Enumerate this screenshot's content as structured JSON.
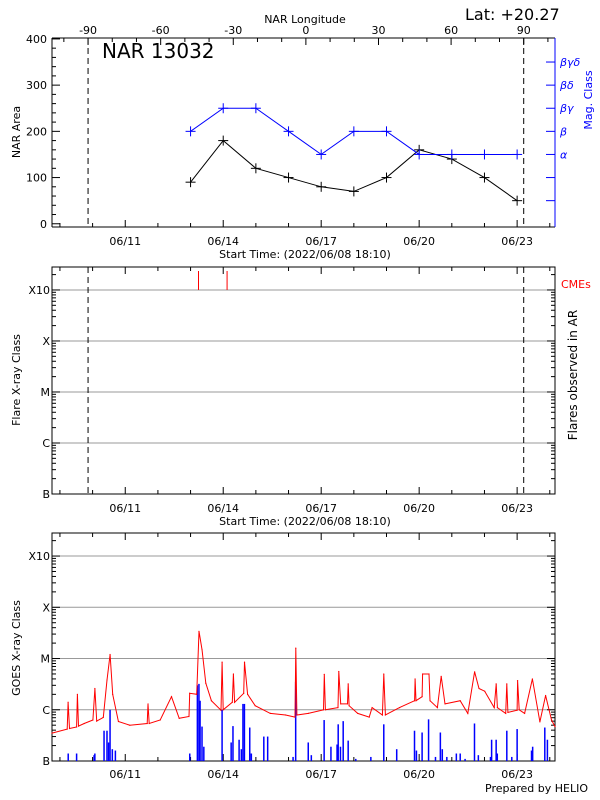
{
  "chart_data": [
    {
      "type": "line",
      "title": "NAR 13032",
      "lat_label": "Lat: +20.27",
      "top_axis_label": "NAR Longitude",
      "top_ticks": [
        -90,
        -60,
        -30,
        0,
        30,
        60,
        90
      ],
      "limb_dates": [
        "2022-06-09T20:40",
        "2022-06-23T04:50"
      ],
      "xlabel": "Start Time: (2022/06/08 18:10)",
      "xlim": [
        "2022-06-08T18:10",
        "2022-06-24T03:50"
      ],
      "xticks": [
        "06/11",
        "06/14",
        "06/17",
        "06/20",
        "06/23"
      ],
      "ylabel": "NAR Area",
      "ylim": [
        -7,
        402
      ],
      "yticks": [
        0,
        100,
        200,
        300,
        400
      ],
      "y2label": "Mag. Class",
      "y2_classes": [
        "α",
        "β",
        "βγ",
        "βδ",
        "βγδ"
      ],
      "colors": {
        "area": "#000000",
        "mag_class": "#0000ff"
      },
      "series": [
        {
          "key": "area",
          "times": [
            "2022-06-13T00:00",
            "2022-06-14T00:00",
            "2022-06-15T00:00",
            "2022-06-16T00:00",
            "2022-06-17T00:00",
            "2022-06-18T00:00",
            "2022-06-19T00:00",
            "2022-06-20T00:00",
            "2022-06-21T00:00",
            "2022-06-22T00:00",
            "2022-06-23T00:00"
          ],
          "values": [
            90,
            180,
            120,
            100,
            80,
            70,
            100,
            160,
            140,
            100,
            50
          ]
        },
        {
          "key": "mag_class",
          "times": [
            "2022-06-13T00:00",
            "2022-06-14T00:00",
            "2022-06-15T00:00",
            "2022-06-16T00:00",
            "2022-06-17T00:00",
            "2022-06-18T00:00",
            "2022-06-19T00:00",
            "2022-06-20T00:00",
            "2022-06-21T00:00",
            "2022-06-22T00:00",
            "2022-06-23T00:00"
          ],
          "values": [
            "β",
            "βγ",
            "βγ",
            "β",
            "α",
            "β",
            "β",
            "α",
            "α",
            "α",
            "α"
          ]
        }
      ]
    },
    {
      "type": "scatter",
      "xlabel": "Start Time: (2022/06/08 18:10)",
      "xticks": [
        "06/11",
        "06/14",
        "06/17",
        "06/20",
        "06/23"
      ],
      "ylabel": "Flare X-ray Class",
      "y2label": "Flares observed in AR",
      "yscale": "log",
      "yticks": [
        "B",
        "C",
        "M",
        "X",
        "X10"
      ],
      "grid": true,
      "cme_label": "CMEs",
      "cme_times": [
        "2022-06-13T05:50",
        "2022-06-14T02:50"
      ],
      "flares": [],
      "colors": {
        "cme": "#ff0000"
      }
    },
    {
      "type": "line",
      "xticks": [
        "06/11",
        "06/14",
        "06/17",
        "06/20",
        "06/23"
      ],
      "ylabel": "GOES X-ray Class",
      "yscale": "log",
      "yticks": [
        "B",
        "C",
        "M",
        "X",
        "X10"
      ],
      "grid": true,
      "credit": "Prepared by HELIO",
      "colors": {
        "long_channel": "#ff0000",
        "short_channel": "#0000ff"
      },
      "long_channel": [
        [
          "2022-06-08T18:10",
          "B3.5"
        ],
        [
          "2022-06-09T05:20",
          "B4.2"
        ],
        [
          "2022-06-09T06:00",
          "C1.4"
        ],
        [
          "2022-06-09T07:00",
          "B4.3"
        ],
        [
          "2022-06-09T12:15",
          "B4.6"
        ],
        [
          "2022-06-09T12:50",
          "C2.0"
        ],
        [
          "2022-06-09T13:40",
          "B4.8"
        ],
        [
          "2022-06-09T17:50",
          "B5.4"
        ],
        [
          "2022-06-10T00:15",
          "B6.3"
        ],
        [
          "2022-06-10T01:40",
          "C2.6"
        ],
        [
          "2022-06-10T03:00",
          "B6.0"
        ],
        [
          "2022-06-10T07:50",
          "B7.1"
        ],
        [
          "2022-06-10T10:35",
          "C3.8"
        ],
        [
          "2022-06-10T12:50",
          "M1.2"
        ],
        [
          "2022-06-10T14:45",
          "C2.0"
        ],
        [
          "2022-06-10T19:00",
          "B5.9"
        ],
        [
          "2022-06-11T03:20",
          "B5.0"
        ],
        [
          "2022-06-11T16:10",
          "B5.4"
        ],
        [
          "2022-06-11T16:45",
          "C1.3"
        ],
        [
          "2022-06-11T17:35",
          "B5.4"
        ],
        [
          "2022-06-12T01:40",
          "B6.3"
        ],
        [
          "2022-06-12T10:00",
          "C1.8"
        ],
        [
          "2022-06-12T15:40",
          "B6.8"
        ],
        [
          "2022-06-12T22:50",
          "B7.4"
        ],
        [
          "2022-06-12T23:20",
          "C2.1"
        ],
        [
          "2022-06-13T04:30",
          "C2.0"
        ],
        [
          "2022-06-13T06:10",
          "M3.4"
        ],
        [
          "2022-06-13T08:25",
          "M1.5"
        ],
        [
          "2022-06-13T11:10",
          "C3.3"
        ],
        [
          "2022-06-13T15:20",
          "C1.5"
        ],
        [
          "2022-06-13T22:20",
          "B9.8"
        ],
        [
          "2022-06-13T23:10",
          "C8.5"
        ],
        [
          "2022-06-14T00:00",
          "C1.0"
        ],
        [
          "2022-06-14T06:40",
          "C1.4"
        ],
        [
          "2022-06-14T07:30",
          "C5.0"
        ],
        [
          "2022-06-14T08:20",
          "C1.4"
        ],
        [
          "2022-06-14T15:05",
          "C2.1"
        ],
        [
          "2022-06-14T15:40",
          "C8.5"
        ],
        [
          "2022-06-14T17:55",
          "C2.0"
        ],
        [
          "2022-06-14T23:30",
          "C1.2"
        ],
        [
          "2022-06-15T10:35",
          "B8.5"
        ],
        [
          "2022-06-15T21:50",
          "B7.9"
        ],
        [
          "2022-06-16T04:45",
          "B7.2"
        ],
        [
          "2022-06-16T05:20",
          "M1.6"
        ],
        [
          "2022-06-16T06:10",
          "B7.9"
        ],
        [
          "2022-06-16T14:30",
          "B8.5"
        ],
        [
          "2022-06-17T01:40",
          "C1.0"
        ],
        [
          "2022-06-17T02:15",
          "C4.9"
        ],
        [
          "2022-06-17T03:05",
          "C1.0"
        ],
        [
          "2022-06-17T12:20",
          "C1.1"
        ],
        [
          "2022-06-17T12:55",
          "C5.6"
        ],
        [
          "2022-06-17T14:20",
          "C1.3"
        ],
        [
          "2022-06-17T19:20",
          "C1.3"
        ],
        [
          "2022-06-17T19:50",
          "C3.2"
        ],
        [
          "2022-06-17T20:30",
          "C1.2"
        ],
        [
          "2022-06-18T02:50",
          "B8.5"
        ],
        [
          "2022-06-18T11:15",
          "B7.2"
        ],
        [
          "2022-06-18T13:25",
          "C1.1"
        ],
        [
          "2022-06-18T21:00",
          "B7.9"
        ],
        [
          "2022-06-18T22:00",
          "C5.0"
        ],
        [
          "2022-06-18T23:10",
          "B7.9"
        ],
        [
          "2022-06-19T09:35",
          "C1.1"
        ],
        [
          "2022-06-19T20:40",
          "C1.5"
        ],
        [
          "2022-06-19T21:00",
          "C4.0"
        ],
        [
          "2022-06-19T21:40",
          "C1.5"
        ],
        [
          "2022-06-20T02:10",
          "C1.8"
        ],
        [
          "2022-06-20T02:30",
          "C5.0"
        ],
        [
          "2022-06-20T07:15",
          "C5.0"
        ],
        [
          "2022-06-20T08:00",
          "C1.5"
        ],
        [
          "2022-06-20T13:25",
          "C1.1"
        ],
        [
          "2022-06-20T16:10",
          "C4.5"
        ],
        [
          "2022-06-20T19:00",
          "C1.3"
        ],
        [
          "2022-06-21T06:10",
          "C1.5"
        ],
        [
          "2022-06-21T11:45",
          "B8.5"
        ],
        [
          "2022-06-21T16:45",
          "C5.5"
        ],
        [
          "2022-06-21T20:00",
          "C2.6"
        ],
        [
          "2022-06-22T00:10",
          "C2.3"
        ],
        [
          "2022-06-22T07:10",
          "C1.1"
        ],
        [
          "2022-06-22T08:35",
          "C3.2"
        ],
        [
          "2022-06-22T09:30",
          "C1.1"
        ],
        [
          "2022-06-22T15:35",
          "B8.5"
        ],
        [
          "2022-06-22T16:25",
          "C3.2"
        ],
        [
          "2022-06-22T17:15",
          "B8.9"
        ],
        [
          "2022-06-23T00:00",
          "B9.8"
        ],
        [
          "2022-06-23T00:20",
          "C3.7"
        ],
        [
          "2022-06-23T01:30",
          "C1.0"
        ],
        [
          "2022-06-23T05:30",
          "B8.5"
        ],
        [
          "2022-06-23T11:15",
          "C4.0"
        ],
        [
          "2022-06-23T16:45",
          "B5.8"
        ],
        [
          "2022-06-23T20:55",
          "C1.9"
        ],
        [
          "2022-06-24T01:15",
          "B6.3"
        ],
        [
          "2022-06-24T03:50",
          "B4.7"
        ]
      ],
      "short_channel": [
        [
          "2022-06-09T06:05",
          "B1.4"
        ],
        [
          "2022-06-09T12:15",
          "B1.4"
        ],
        [
          "2022-06-10T01:05",
          "B1.3"
        ],
        [
          "2022-06-10T01:40",
          "B1.4"
        ],
        [
          "2022-06-10T08:25",
          "B3.9"
        ],
        [
          "2022-06-10T10:35",
          "B3.9"
        ],
        [
          "2022-06-10T11:45",
          "B2.3"
        ],
        [
          "2022-06-10T12:50",
          "C1.0"
        ],
        [
          "2022-06-10T14:30",
          "B1.7"
        ],
        [
          "2022-06-10T16:45",
          "B1.6"
        ],
        [
          "2022-06-12T23:25",
          "B1.4"
        ],
        [
          "2022-06-13T05:00",
          "C3.0"
        ],
        [
          "2022-06-13T06:10",
          "C3.2"
        ],
        [
          "2022-06-13T07:00",
          "C1.5"
        ],
        [
          "2022-06-13T08:25",
          "B4.7"
        ],
        [
          "2022-06-13T09:45",
          "B1.9"
        ],
        [
          "2022-06-13T23:10",
          "C1.0"
        ],
        [
          "2022-06-14T05:50",
          "B2.3"
        ],
        [
          "2022-06-14T07:10",
          "B4.8"
        ],
        [
          "2022-06-14T11:40",
          "B2.6"
        ],
        [
          "2022-06-14T13:20",
          "B1.7"
        ],
        [
          "2022-06-14T14:30",
          "C1.3"
        ],
        [
          "2022-06-14T15:35",
          "C1.3"
        ],
        [
          "2022-06-14T19:30",
          "B4.5"
        ],
        [
          "2022-06-14T20:40",
          "B1.4"
        ],
        [
          "2022-06-15T05:50",
          "B3.0"
        ],
        [
          "2022-06-15T08:40",
          "B3.0"
        ],
        [
          "2022-06-16T03:20",
          "B1.2"
        ],
        [
          "2022-06-16T05:15",
          "C3.5"
        ],
        [
          "2022-06-16T14:30",
          "B2.3"
        ],
        [
          "2022-06-16T16:45",
          "B1.3"
        ],
        [
          "2022-06-17T02:10",
          "B6.3"
        ],
        [
          "2022-06-17T07:10",
          "B1.9"
        ],
        [
          "2022-06-17T11:40",
          "B2.1"
        ],
        [
          "2022-06-17T12:30",
          "B5.2"
        ],
        [
          "2022-06-17T14:10",
          "B1.9"
        ],
        [
          "2022-06-17T16:10",
          "B6.0"
        ],
        [
          "2022-06-17T19:50",
          "B2.5"
        ],
        [
          "2022-06-18T01:25",
          "B1.1"
        ],
        [
          "2022-06-18T12:30",
          "B1.2"
        ],
        [
          "2022-06-18T22:00",
          "B5.2"
        ],
        [
          "2022-06-19T07:30",
          "B1.7"
        ],
        [
          "2022-06-19T20:35",
          "B3.9"
        ],
        [
          "2022-06-19T22:00",
          "B1.6"
        ],
        [
          "2022-06-20T02:10",
          "B3.6"
        ],
        [
          "2022-06-20T06:55",
          "B6.5"
        ],
        [
          "2022-06-20T12:00",
          "B1.2"
        ],
        [
          "2022-06-20T15:35",
          "B3.6"
        ],
        [
          "2022-06-20T17:00",
          "B1.7"
        ],
        [
          "2022-06-20T20:20",
          "B1.2"
        ],
        [
          "2022-06-21T03:20",
          "B1.4"
        ],
        [
          "2022-06-21T06:10",
          "B1.4"
        ],
        [
          "2022-06-21T09:45",
          "B1.1"
        ],
        [
          "2022-06-21T16:40",
          "B5.4"
        ],
        [
          "2022-06-21T19:30",
          "B1.3"
        ],
        [
          "2022-06-22T04:25",
          "B1.2"
        ],
        [
          "2022-06-22T05:15",
          "B2.6"
        ],
        [
          "2022-06-22T08:35",
          "B2.6"
        ],
        [
          "2022-06-22T09:25",
          "B1.4"
        ],
        [
          "2022-06-22T16:25",
          "B3.9"
        ],
        [
          "2022-06-22T20:05",
          "B1.2"
        ],
        [
          "2022-06-23T00:00",
          "B4.2"
        ],
        [
          "2022-06-23T10:35",
          "B1.6"
        ],
        [
          "2022-06-23T11:25",
          "B1.9"
        ],
        [
          "2022-06-23T20:20",
          "B4.5"
        ],
        [
          "2022-06-23T22:15",
          "B2.6"
        ]
      ]
    }
  ]
}
